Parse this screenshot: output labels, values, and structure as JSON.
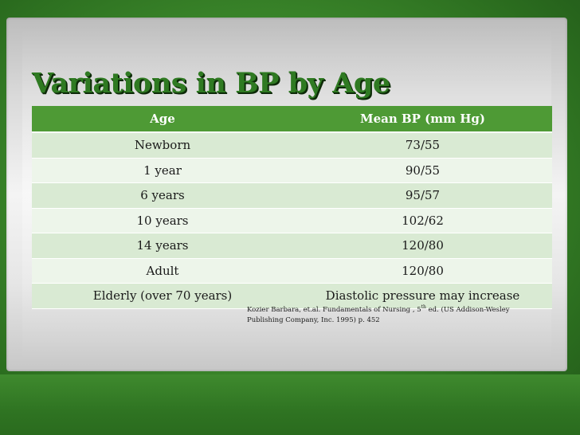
{
  "slide": {
    "title": "Variations in BP by Age",
    "table": {
      "headers": [
        "Age",
        "Mean BP (mm Hg)"
      ],
      "rows": [
        [
          "Newborn",
          "73/55"
        ],
        [
          "1 year",
          "90/55"
        ],
        [
          "6 years",
          "95/57"
        ],
        [
          "10 years",
          "102/62"
        ],
        [
          "14 years",
          "120/80"
        ],
        [
          "Adult",
          "120/80"
        ],
        [
          "Elderly (over 70 years)",
          "Diastolic pressure may increase"
        ]
      ]
    },
    "citation": {
      "before": "Kozier Barbara, et.al. Fundamentals of Nursing , 5",
      "sup": "th",
      "after": " ed. (US Addison-Wesley Publishing Company, Inc. 1995) p. 452"
    }
  },
  "colors": {
    "title": "#2f7a22",
    "header_bg": "#4e9a35",
    "row_odd": "#d9ead3",
    "row_even": "#edf5ea"
  }
}
